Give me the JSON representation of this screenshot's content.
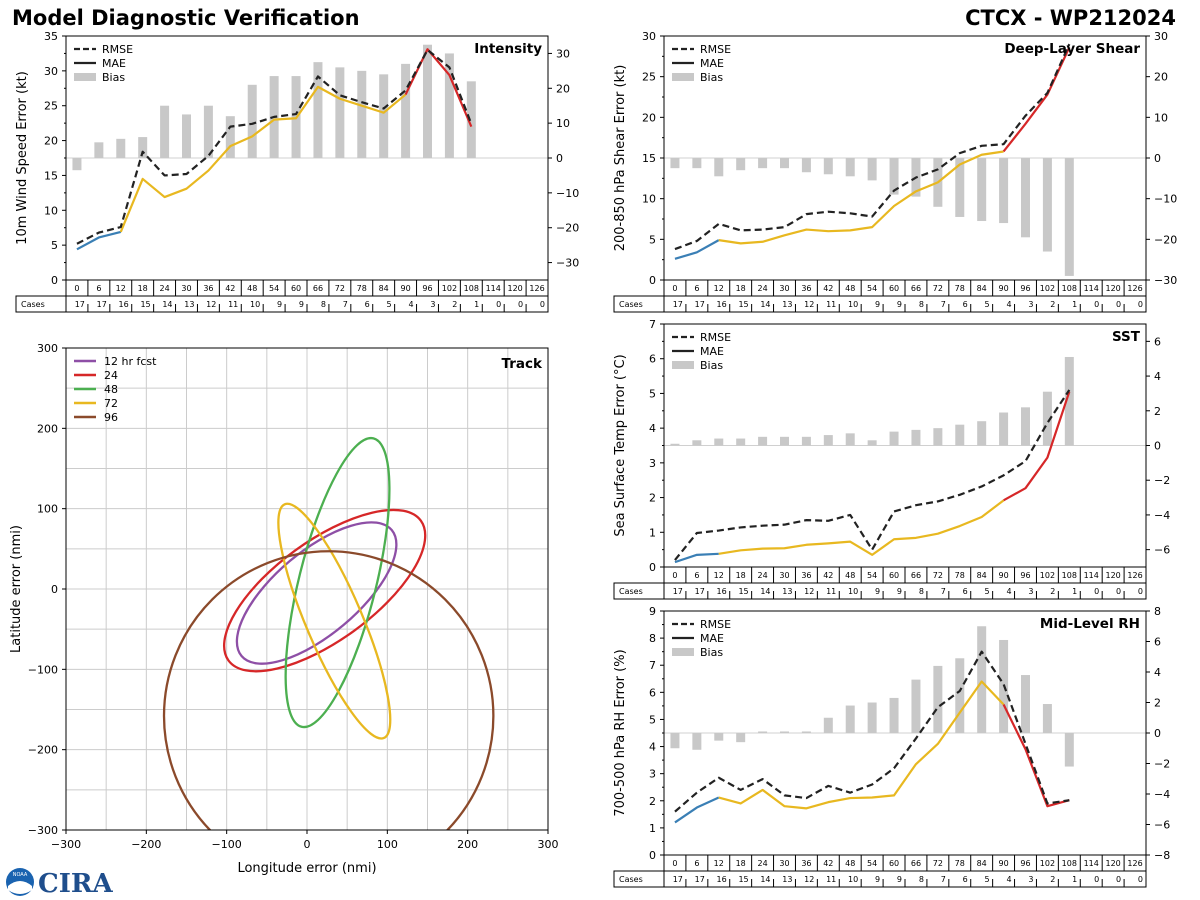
{
  "header": {
    "title": "Model Diagnostic Verification",
    "storm": "CTCX - WP212024"
  },
  "logo_text": "CIRA",
  "noaa_text": "NOAA",
  "colors": {
    "rmse": "#222222",
    "blue": "#3a7fb5",
    "yellow": "#e8b820",
    "red": "#d62728",
    "bias": "#c8c8c8",
    "purple": "#8e4fa6",
    "green": "#4caf50",
    "brown": "#8b4a2b",
    "grid": "#cccccc"
  },
  "chart_data": [
    {
      "type": "line",
      "id": "intensity",
      "title": "Intensity",
      "ylabel": "10m Wind Speed Error (kt)",
      "ylim": [
        0,
        35
      ],
      "yticks": [
        0,
        5,
        10,
        15,
        20,
        25,
        30,
        35
      ],
      "y2lim": [
        -35,
        35
      ],
      "y2ticks": [
        -30,
        -20,
        -10,
        0,
        10,
        20,
        30
      ],
      "x": [
        0,
        6,
        12,
        18,
        24,
        30,
        36,
        42,
        48,
        54,
        60,
        66,
        72,
        78,
        84,
        90,
        96,
        102,
        108,
        114,
        120,
        126
      ],
      "cases": [
        17,
        17,
        16,
        15,
        14,
        13,
        12,
        11,
        10,
        9,
        9,
        8,
        7,
        6,
        5,
        4,
        3,
        2,
        1,
        0,
        0,
        0
      ],
      "cases_label": "Cases",
      "legend": [
        "RMSE",
        "MAE",
        "Bias"
      ],
      "rmse": [
        5.2,
        6.8,
        7.6,
        18.4,
        15.0,
        15.2,
        17.8,
        22.0,
        22.4,
        23.4,
        23.8,
        29.2,
        26.5,
        25.5,
        24.6,
        27.2,
        33.0,
        30.5,
        22.4
      ],
      "mae": [
        4.4,
        6.1,
        6.9,
        14.5,
        11.9,
        13.1,
        15.7,
        19.2,
        20.6,
        23.0,
        23.2,
        27.7,
        26.0,
        25.0,
        24.0,
        26.6,
        33.1,
        29.4,
        22.0
      ],
      "bias": [
        -3.5,
        4.5,
        5.5,
        6,
        15,
        12.5,
        15,
        12,
        21,
        23.5,
        23.5,
        27.5,
        26,
        25,
        24,
        27,
        32.5,
        30,
        22
      ]
    },
    {
      "type": "line",
      "id": "shear",
      "title": "Deep-Layer Shear",
      "ylabel": "200-850 hPa Shear Error (kt)",
      "ylim": [
        0,
        30
      ],
      "yticks": [
        0,
        5,
        10,
        15,
        20,
        25,
        30
      ],
      "y2lim": [
        -30,
        30
      ],
      "y2ticks": [
        -30,
        -20,
        -10,
        0,
        10,
        20,
        30
      ],
      "x": [
        0,
        6,
        12,
        18,
        24,
        30,
        36,
        42,
        48,
        54,
        60,
        66,
        72,
        78,
        84,
        90,
        96,
        102,
        108,
        114,
        120,
        126
      ],
      "cases": [
        17,
        17,
        16,
        15,
        14,
        13,
        12,
        11,
        10,
        9,
        9,
        8,
        7,
        6,
        5,
        4,
        3,
        2,
        1,
        0,
        0,
        0
      ],
      "cases_label": "Cases",
      "legend": [
        "RMSE",
        "MAE",
        "Bias"
      ],
      "rmse": [
        3.8,
        4.8,
        6.9,
        6.1,
        6.2,
        6.5,
        8.1,
        8.4,
        8.2,
        7.8,
        11.0,
        12.6,
        13.6,
        15.6,
        16.5,
        16.7,
        20.2,
        23.0,
        29.0
      ],
      "mae": [
        2.6,
        3.4,
        4.9,
        4.5,
        4.7,
        5.5,
        6.2,
        6.0,
        6.1,
        6.5,
        9.1,
        10.9,
        12.0,
        14.2,
        15.4,
        15.8,
        19.2,
        22.8,
        28.6
      ],
      "bias": [
        -2.5,
        -2.5,
        -4.5,
        -3,
        -2.5,
        -2.5,
        -3.5,
        -4,
        -4.5,
        -5.5,
        -9,
        -9.5,
        -12,
        -14.5,
        -15.5,
        -16,
        -19.5,
        -23,
        -29
      ]
    },
    {
      "type": "line",
      "id": "sst",
      "title": "SST",
      "ylabel": "Sea Surface Temp Error (°C)",
      "ylim": [
        0,
        7
      ],
      "yticks": [
        0,
        1,
        2,
        3,
        4,
        5,
        6,
        7
      ],
      "y2lim": [
        -7,
        7
      ],
      "y2ticks": [
        -6,
        -4,
        -2,
        0,
        2,
        4,
        6
      ],
      "x": [
        0,
        6,
        12,
        18,
        24,
        30,
        36,
        42,
        48,
        54,
        60,
        66,
        72,
        78,
        84,
        90,
        96,
        102,
        108,
        114,
        120,
        126
      ],
      "cases": [
        17,
        17,
        16,
        15,
        14,
        13,
        12,
        11,
        10,
        9,
        9,
        8,
        7,
        6,
        5,
        4,
        3,
        2,
        1,
        0,
        0,
        0
      ],
      "cases_label": "Cases",
      "legend": [
        "RMSE",
        "MAE",
        "Bias"
      ],
      "rmse": [
        0.2,
        0.98,
        1.05,
        1.14,
        1.19,
        1.22,
        1.35,
        1.33,
        1.5,
        0.5,
        1.6,
        1.78,
        1.89,
        2.08,
        2.32,
        2.64,
        3.05,
        4.15,
        5.1
      ],
      "mae": [
        0.14,
        0.35,
        0.38,
        0.48,
        0.53,
        0.54,
        0.64,
        0.68,
        0.73,
        0.35,
        0.8,
        0.84,
        0.96,
        1.18,
        1.44,
        1.92,
        2.27,
        3.15,
        5.05
      ],
      "bias": [
        0.1,
        0.3,
        0.4,
        0.4,
        0.5,
        0.5,
        0.5,
        0.6,
        0.7,
        0.3,
        0.8,
        0.9,
        1.0,
        1.2,
        1.4,
        1.9,
        2.2,
        3.1,
        5.1
      ]
    },
    {
      "type": "line",
      "id": "rh",
      "title": "Mid-Level RH",
      "ylabel": "700-500 hPa RH Error (%)",
      "ylim": [
        0,
        9
      ],
      "yticks": [
        0,
        1,
        2,
        3,
        4,
        5,
        6,
        7,
        8,
        9
      ],
      "y2lim": [
        -8,
        8
      ],
      "y2ticks": [
        -8,
        -6,
        -4,
        -2,
        0,
        2,
        4,
        6,
        8
      ],
      "x": [
        0,
        6,
        12,
        18,
        24,
        30,
        36,
        42,
        48,
        54,
        60,
        66,
        72,
        78,
        84,
        90,
        96,
        102,
        108,
        114,
        120,
        126
      ],
      "cases": [
        17,
        17,
        16,
        15,
        14,
        13,
        12,
        11,
        10,
        9,
        9,
        8,
        7,
        6,
        5,
        4,
        3,
        2,
        1,
        0,
        0,
        0
      ],
      "cases_label": "Cases",
      "legend": [
        "RMSE",
        "MAE",
        "Bias"
      ],
      "rmse": [
        1.6,
        2.3,
        2.85,
        2.4,
        2.8,
        2.2,
        2.1,
        2.55,
        2.3,
        2.6,
        3.2,
        4.3,
        5.45,
        6.05,
        7.5,
        6.3,
        4.1,
        1.9,
        2.02
      ],
      "mae": [
        1.2,
        1.75,
        2.12,
        1.9,
        2.4,
        1.8,
        1.72,
        1.95,
        2.1,
        2.12,
        2.2,
        3.35,
        4.1,
        5.25,
        6.4,
        5.55,
        3.9,
        1.8,
        2.02
      ],
      "bias": [
        -1.0,
        -1.1,
        -0.5,
        -0.6,
        0.1,
        0.1,
        0.1,
        1.0,
        1.8,
        2.0,
        2.3,
        3.5,
        4.4,
        4.9,
        7.0,
        6.1,
        3.8,
        1.9,
        -2.2
      ]
    },
    {
      "type": "scatter",
      "id": "track",
      "title": "Track",
      "xlabel": "Longitude error (nmi)",
      "ylabel": "Latitude error (nmi)",
      "xlim": [
        -300,
        300
      ],
      "ylim": [
        -300,
        300
      ],
      "xticks": [
        -300,
        -200,
        -100,
        0,
        100,
        200,
        300
      ],
      "yticks": [
        -300,
        -200,
        -100,
        0,
        100,
        200,
        300
      ],
      "series": [
        {
          "name": "12 hr fcst",
          "color_key": "purple",
          "cx": 12,
          "cy": -5,
          "rx": 122,
          "ry": 52,
          "angle": 40
        },
        {
          "name": "24",
          "color_key": "red",
          "cx": 22,
          "cy": -2,
          "rx": 148,
          "ry": 62,
          "angle": 36
        },
        {
          "name": "48",
          "color_key": "green",
          "cx": 38,
          "cy": 8,
          "rx": 185,
          "ry": 48,
          "angle": 76
        },
        {
          "name": "72",
          "color_key": "yellow",
          "cx": 34,
          "cy": -40,
          "rx": 158,
          "ry": 35,
          "angle": -67
        },
        {
          "name": "96",
          "color_key": "brown",
          "cx": 27,
          "cy": -158,
          "rx": 205,
          "ry": 205,
          "angle": 0
        }
      ]
    }
  ]
}
